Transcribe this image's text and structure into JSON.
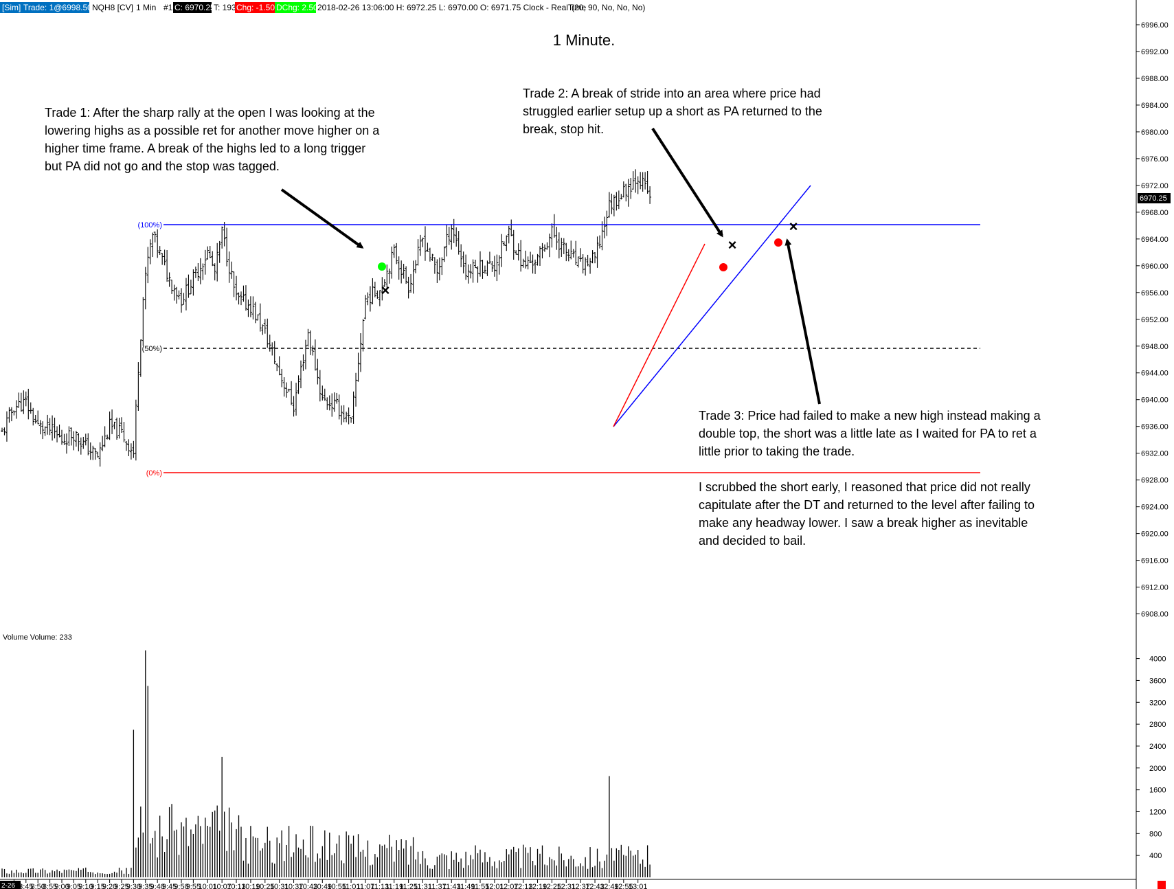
{
  "header": {
    "sim": "[Sim]",
    "trade": "Trade: 1@6998.50",
    "symbol": "NQH8 [CV]",
    "interval": "1 Min",
    "number": "#1",
    "close": "C: 6970.25",
    "ticks": "T: 193",
    "chg": "Chg: -1.50",
    "dchg": "DChg: 2.50",
    "info": "2018-02-26 13:06:00 H: 6972.25 L: 6970.00 O: 6971.75 Clock - RealTime",
    "params": "(20, 90, No, No, No)"
  },
  "title": "1 Minute.",
  "volume_label": "Volume  Volume: 233",
  "last_price_label": "6970.25",
  "bottom_left_label": "2-26",
  "fib_labels": {
    "high": "(100%)",
    "mid": "(50%)",
    "low": "(0%)"
  },
  "annotations": {
    "trade1": [
      "Trade 1:  After the sharp rally at the open I was looking at the",
      "lowering highs as a possible ret for another move higher on a",
      "higher time frame.  A break of the highs led to a long trigger",
      "but PA did not go and the stop was tagged."
    ],
    "trade2": [
      "Trade 2:  A break of stride into an area where price had",
      "struggled earlier setup up a short as PA returned to the",
      "break, stop hit."
    ],
    "trade3": [
      "Trade 3:  Price had failed to make a new high instead making a",
      "double top, the short was a little late as I waited for PA to ret a",
      "little prior to taking the trade."
    ],
    "note": [
      "I scrubbed the short early, I reasoned that price did not really",
      "capitulate after the DT and returned to the level after failing to",
      "make any headway lower.   I saw a break higher as inevitable",
      "and decided to bail."
    ]
  },
  "colors": {
    "up_bar": "#000000",
    "fib_high": "#0000ff",
    "fib_mid": "#000000",
    "fib_low": "#ff0000",
    "trend_blue": "#0000ff",
    "trend_red": "#ff0000",
    "long_entry": "#00ff00",
    "short_entry": "#ff0000",
    "sim_bg": "#0070c0",
    "close_bg": "#000000",
    "chg_bg": "#ff0000",
    "dchg_bg": "#00ff00"
  },
  "chart_data": [
    {
      "type": "ohlc",
      "title": "1 Minute.",
      "x_tick_labels": [
        "8:40",
        "8:45",
        "8:50",
        "8:55",
        "9:00",
        "9:05",
        "9:10",
        "9:15",
        "9:20",
        "9:25",
        "9:30",
        "9:35",
        "9:40",
        "9:45",
        "9:50",
        "9:55",
        "10:01",
        "10:07",
        "10:13",
        "10:19",
        "10:25",
        "10:31",
        "10:37",
        "10:43",
        "10:49",
        "10:55",
        "11:01",
        "11:07",
        "11:13",
        "11:19",
        "11:25",
        "11:31",
        "11:37",
        "11:43",
        "11:49",
        "11:55",
        "12:01",
        "12:07",
        "12:13",
        "12:19",
        "12:25",
        "12:31",
        "12:37",
        "12:43",
        "12:49",
        "12:55",
        "13:01"
      ],
      "y_tick_labels": [
        "6996.00",
        "6992.00",
        "6988.00",
        "6984.00",
        "6980.00",
        "6976.00",
        "6972.00",
        "6968.00",
        "6964.00",
        "6960.00",
        "6956.00",
        "6952.00",
        "6948.00",
        "6944.00",
        "6940.00",
        "6936.00",
        "6932.00",
        "6928.00",
        "6924.00",
        "6920.00",
        "6916.00",
        "6912.00",
        "6908.00"
      ],
      "ylim": [
        6906,
        6999
      ],
      "last_price": 6970.25,
      "key_levels": {
        "fib_100": 6966.5,
        "fib_50": 6948.0,
        "fib_0": 6929.5
      },
      "price_path": [
        {
          "time": "8:35",
          "close": 6935
        },
        {
          "time": "8:40",
          "close": 6939
        },
        {
          "time": "8:45",
          "close": 6939.5
        },
        {
          "time": "8:50",
          "close": 6936
        },
        {
          "time": "8:55",
          "close": 6935.5
        },
        {
          "time": "9:00",
          "close": 6934
        },
        {
          "time": "9:05",
          "close": 6935
        },
        {
          "time": "9:10",
          "close": 6933
        },
        {
          "time": "9:15",
          "close": 6931.5
        },
        {
          "time": "9:20",
          "close": 6936
        },
        {
          "time": "9:25",
          "close": 6935
        },
        {
          "time": "9:30",
          "close": 6932
        },
        {
          "time": "9:32",
          "close": 6945
        },
        {
          "time": "9:34",
          "close": 6955
        },
        {
          "time": "9:36",
          "close": 6961
        },
        {
          "time": "9:38",
          "close": 6964.5
        },
        {
          "time": "9:45",
          "close": 6958
        },
        {
          "time": "9:50",
          "close": 6955
        },
        {
          "time": "9:55",
          "close": 6958
        },
        {
          "time": "10:01",
          "close": 6962
        },
        {
          "time": "10:04",
          "close": 6959
        },
        {
          "time": "10:07",
          "close": 6965
        },
        {
          "time": "10:13",
          "close": 6955
        },
        {
          "time": "10:19",
          "close": 6954
        },
        {
          "time": "10:25",
          "close": 6950
        },
        {
          "time": "10:31",
          "close": 6944
        },
        {
          "time": "10:37",
          "close": 6939
        },
        {
          "time": "10:43",
          "close": 6950
        },
        {
          "time": "10:49",
          "close": 6940
        },
        {
          "time": "10:55",
          "close": 6939
        },
        {
          "time": "11:01",
          "close": 6936.5
        },
        {
          "time": "11:07",
          "close": 6955
        },
        {
          "time": "11:13",
          "close": 6956.5
        },
        {
          "time": "11:19",
          "close": 6962
        },
        {
          "time": "11:25",
          "close": 6957
        },
        {
          "time": "11:31",
          "close": 6964
        },
        {
          "time": "11:37",
          "close": 6959
        },
        {
          "time": "11:43",
          "close": 6966
        },
        {
          "time": "11:49",
          "close": 6959
        },
        {
          "time": "11:55",
          "close": 6960
        },
        {
          "time": "12:01",
          "close": 6960
        },
        {
          "time": "12:07",
          "close": 6965
        },
        {
          "time": "12:13",
          "close": 6960
        },
        {
          "time": "12:19",
          "close": 6961
        },
        {
          "time": "12:25",
          "close": 6965
        },
        {
          "time": "12:31",
          "close": 6962
        },
        {
          "time": "12:37",
          "close": 6960
        },
        {
          "time": "12:43",
          "close": 6961
        },
        {
          "time": "12:49",
          "close": 6969
        },
        {
          "time": "12:55",
          "close": 6971
        },
        {
          "time": "13:01",
          "close": 6973.5
        },
        {
          "time": "13:06",
          "close": 6970.25
        }
      ]
    },
    {
      "type": "bar",
      "title": "Volume",
      "y_tick_labels": [
        "4000",
        "3600",
        "3200",
        "2800",
        "2400",
        "2000",
        "1600",
        "1200",
        "800",
        "400"
      ],
      "ylim": [
        0,
        4400
      ],
      "last_value": 233,
      "notable_bars": [
        {
          "time": "9:30",
          "value": 2700
        },
        {
          "time": "9:35",
          "value": 4150
        },
        {
          "time": "9:36",
          "value": 3500
        },
        {
          "time": "10:07",
          "value": 2200
        },
        {
          "time": "12:49",
          "value": 1850
        }
      ]
    }
  ]
}
